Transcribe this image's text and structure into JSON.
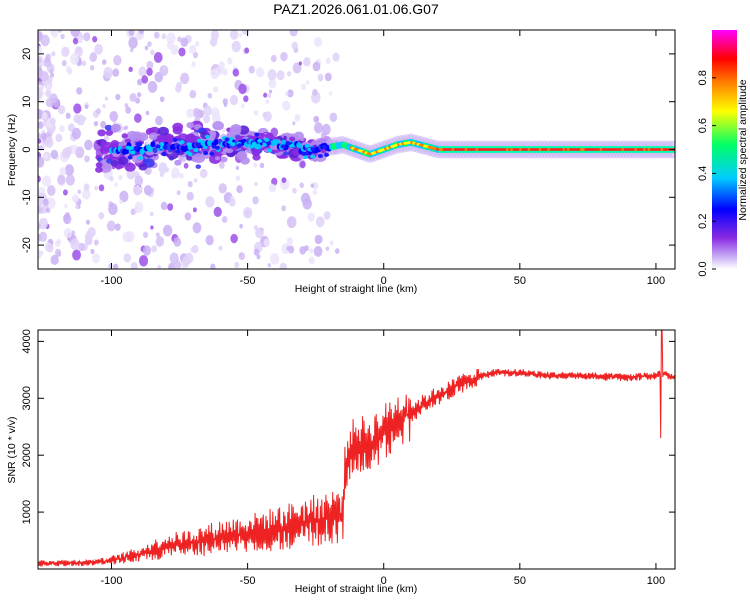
{
  "title": "PAZ1.2026.061.01.06.G07",
  "chart_data": [
    {
      "type": "heatmap",
      "xlabel": "Height of straight line (km)",
      "ylabel": "Frequency (Hz)",
      "xlim": [
        -127,
        107
      ],
      "ylim": [
        -25,
        25
      ],
      "xticks": [
        -100,
        -50,
        0,
        50,
        100
      ],
      "yticks": [
        -20,
        -10,
        0,
        10,
        20
      ],
      "colorbar": {
        "label": "Normalized spectral amplitude",
        "range": [
          0,
          1
        ],
        "ticks": [
          0.0,
          0.2,
          0.4,
          0.6,
          0.8
        ],
        "colors": [
          "#ffffff",
          "#c9b0f5",
          "#8a2be2",
          "#0000ff",
          "#00ccff",
          "#00ff66",
          "#ffff00",
          "#ff7f00",
          "#ff0000",
          "#ff00ff"
        ]
      },
      "ridge": [
        {
          "x": -100,
          "f": 0.0
        },
        {
          "x": -80,
          "f": 0.5
        },
        {
          "x": -60,
          "f": 1.0
        },
        {
          "x": -40,
          "f": 1.5
        },
        {
          "x": -25,
          "f": 0.0
        },
        {
          "x": -15,
          "f": 1.0
        },
        {
          "x": -5,
          "f": -1.0
        },
        {
          "x": 0,
          "f": 0.0
        },
        {
          "x": 5,
          "f": 1.0
        },
        {
          "x": 10,
          "f": 1.5
        },
        {
          "x": 20,
          "f": 0.0
        },
        {
          "x": 50,
          "f": 0.0
        },
        {
          "x": 80,
          "f": 0.0
        },
        {
          "x": 107,
          "f": 0.0
        }
      ]
    },
    {
      "type": "line",
      "xlabel": "Height of straight line (km)",
      "ylabel": "SNR (10 * v/v)",
      "xlim": [
        -127,
        107
      ],
      "ylim": [
        0,
        4200
      ],
      "xticks": [
        -100,
        -50,
        0,
        50,
        100
      ],
      "yticks": [
        1000,
        2000,
        3000,
        4000
      ],
      "color": "#ee2222",
      "series": [
        {
          "name": "SNR",
          "x": [
            -127,
            -110,
            -100,
            -90,
            -80,
            -70,
            -60,
            -50,
            -40,
            -30,
            -20,
            -15,
            -14,
            -12,
            -10,
            -5,
            0,
            5,
            10,
            15,
            20,
            25,
            30,
            40,
            50,
            60,
            70,
            80,
            90,
            100,
            102,
            107
          ],
          "y": [
            100,
            110,
            150,
            250,
            400,
            460,
            560,
            620,
            700,
            800,
            900,
            950,
            1900,
            2100,
            2200,
            2200,
            2400,
            2600,
            2750,
            2900,
            3050,
            3150,
            3300,
            3450,
            3450,
            3400,
            3400,
            3380,
            3370,
            3400,
            3450,
            3350
          ]
        }
      ],
      "annotations": [
        {
          "x": 102,
          "y": 4200,
          "note": "spike"
        },
        {
          "x": 102,
          "y": 2300,
          "note": "dip"
        }
      ]
    }
  ]
}
